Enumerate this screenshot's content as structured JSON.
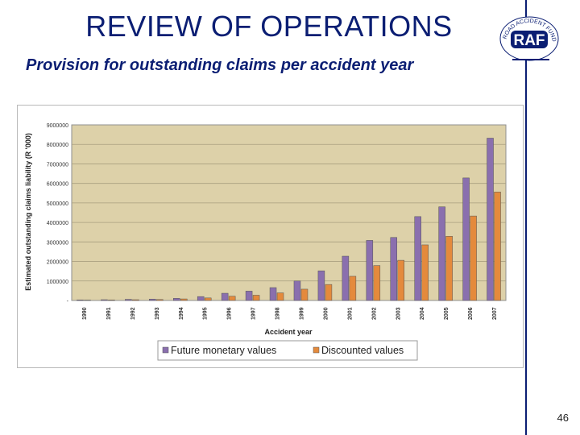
{
  "slide": {
    "title": "REVIEW OF OPERATIONS",
    "subtitle": "Provision for outstanding claims per accident year",
    "page_number": "46",
    "logo_text": "RAF",
    "logo_ring_text": "ROAD ACCIDENT FUND"
  },
  "colors": {
    "title": "#0b1e73",
    "plot_bg": "#ddd1a9",
    "series_future": "#8a6fae",
    "series_discounted": "#e48a3c"
  },
  "chart_data": {
    "type": "bar",
    "title": "",
    "xlabel": "Accident year",
    "ylabel": "Estimated outstanding claims liability (R '000)",
    "ylim": [
      0,
      9000000
    ],
    "yticks": [
      0,
      1000000,
      2000000,
      3000000,
      4000000,
      5000000,
      6000000,
      7000000,
      8000000,
      9000000
    ],
    "ytick_labels": [
      "-",
      "1000000",
      "2000000",
      "3000000",
      "4000000",
      "5000000",
      "6000000",
      "7000000",
      "8000000",
      "9000000"
    ],
    "categories": [
      "1990",
      "1991",
      "1992",
      "1993",
      "1994",
      "1995",
      "1996",
      "1997",
      "1998",
      "1999",
      "2000",
      "2001",
      "2002",
      "2003",
      "2004",
      "2005",
      "2006",
      "2007"
    ],
    "series": [
      {
        "name": "Future monetary values",
        "color": "#8a6fae",
        "values": [
          30000,
          40000,
          60000,
          70000,
          110000,
          200000,
          370000,
          480000,
          660000,
          1000000,
          1520000,
          2270000,
          3080000,
          3230000,
          4300000,
          4800000,
          6280000,
          8320000
        ]
      },
      {
        "name": "Discounted values",
        "color": "#e48a3c",
        "values": [
          20000,
          25000,
          40000,
          50000,
          80000,
          130000,
          220000,
          270000,
          390000,
          580000,
          820000,
          1240000,
          1790000,
          2060000,
          2850000,
          3290000,
          4330000,
          5560000
        ]
      }
    ],
    "grid": true,
    "legend_position": "bottom"
  }
}
